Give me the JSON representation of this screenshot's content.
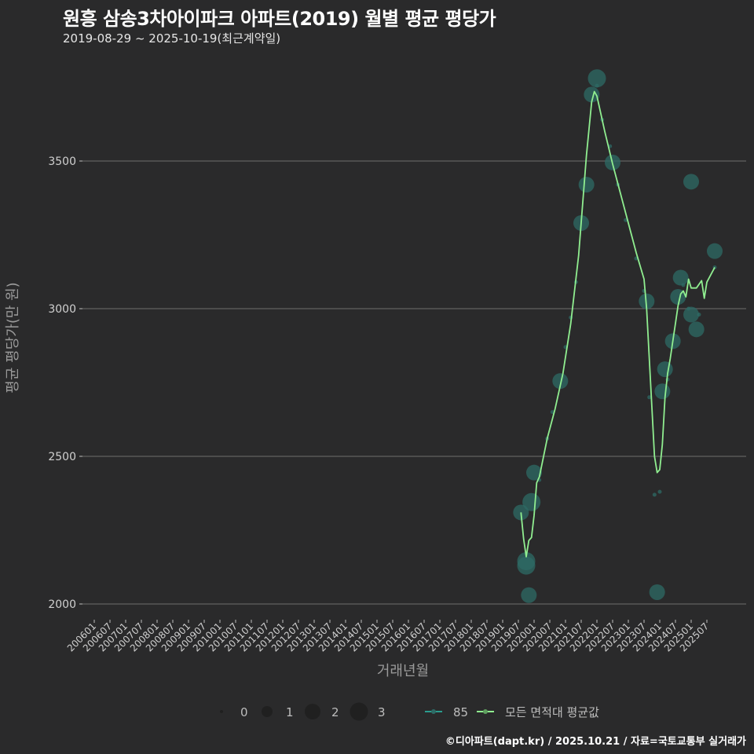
{
  "title": "원흥 삼송3차아이파크 아파트(2019) 월별 평균 평당가",
  "subtitle": "2019-08-29 ~ 2025-10-19(최근계약일)",
  "footer": "©디아파트(dapt.kr) / 2025.10.21 / 자료=국토교통부 실거래가",
  "colors": {
    "background": "#2a2a2b",
    "grid": "#6e6e6e",
    "series_85": "#2a9d8f",
    "bubble_fill": "#2e6b66",
    "average_line": "#90ee90",
    "axis_text": "#d0d0d0",
    "axis_title": "#9a9a9a"
  },
  "chart_data": {
    "type": "line",
    "title": "원흥 삼송3차아이파크 아파트(2019) 월별 평균 평당가",
    "subtitle": "2019-08-29 ~ 2025-10-19(최근계약일)",
    "xlabel": "거래년월",
    "ylabel": "평균 평당가(만 원)",
    "ylim": [
      1930,
      3830
    ],
    "yticks": [
      2000,
      2500,
      3000,
      3500
    ],
    "grid": true,
    "x_tick_labels": [
      "200601",
      "200607",
      "200701",
      "200707",
      "200801",
      "200807",
      "200901",
      "200907",
      "201001",
      "201007",
      "201101",
      "201107",
      "201201",
      "201207",
      "201301",
      "201307",
      "201401",
      "201407",
      "201501",
      "201507",
      "201601",
      "201607",
      "201701",
      "201707",
      "201801",
      "201807",
      "201901",
      "201907",
      "202001",
      "202007",
      "202101",
      "202107",
      "202201",
      "202207",
      "202301",
      "202307",
      "202401",
      "202407",
      "202501",
      "202507"
    ],
    "legend": {
      "position": "bottom",
      "size_title": "",
      "size_entries": [
        {
          "label": "0",
          "r": 2
        },
        {
          "label": "1",
          "r": 7
        },
        {
          "label": "2",
          "r": 10
        },
        {
          "label": "3",
          "r": 11.5
        }
      ],
      "series_entries": [
        {
          "label": "85",
          "color": "#2a9d8f"
        },
        {
          "label": "모든 면적대 평균값",
          "color": "#90ee90"
        }
      ]
    },
    "series": [
      {
        "name": "모든 면적대 평균값",
        "type": "line",
        "points": [
          [
            "2019-08",
            2310
          ],
          [
            "2019-09",
            2220
          ],
          [
            "2019-10",
            2160
          ],
          [
            "2019-11",
            2215
          ],
          [
            "2019-12",
            2225
          ],
          [
            "2020-01",
            2300
          ],
          [
            "2020-02",
            2410
          ],
          [
            "2020-03",
            2430
          ],
          [
            "2020-06",
            2560
          ],
          [
            "2020-09",
            2660
          ],
          [
            "2020-12",
            2780
          ],
          [
            "2021-03",
            2950
          ],
          [
            "2021-06",
            3180
          ],
          [
            "2021-09",
            3520
          ],
          [
            "2021-11",
            3700
          ],
          [
            "2021-12",
            3735
          ],
          [
            "2022-01",
            3720
          ],
          [
            "2022-04",
            3600
          ],
          [
            "2022-07",
            3490
          ],
          [
            "2022-10",
            3390
          ],
          [
            "2023-01",
            3290
          ],
          [
            "2023-04",
            3190
          ],
          [
            "2023-07",
            3100
          ],
          [
            "2023-08",
            3000
          ],
          [
            "2023-09",
            2830
          ],
          [
            "2023-11",
            2500
          ],
          [
            "2023-12",
            2445
          ],
          [
            "2024-01",
            2455
          ],
          [
            "2024-02",
            2540
          ],
          [
            "2024-03",
            2700
          ],
          [
            "2024-04",
            2780
          ],
          [
            "2024-05",
            2830
          ],
          [
            "2024-07",
            2950
          ],
          [
            "2024-08",
            3010
          ],
          [
            "2024-09",
            3050
          ],
          [
            "2024-10",
            3060
          ],
          [
            "2024-11",
            3040
          ],
          [
            "2024-12",
            3100
          ],
          [
            "2025-01",
            3070
          ],
          [
            "2025-03",
            3070
          ],
          [
            "2025-05",
            3095
          ],
          [
            "2025-06",
            3035
          ],
          [
            "2025-07",
            3090
          ],
          [
            "2025-10",
            3140
          ]
        ]
      },
      {
        "name": "85",
        "type": "scatter",
        "points": [
          [
            "2019-08",
            2310,
            2
          ],
          [
            "2019-10",
            2145,
            3
          ],
          [
            "2019-10",
            2130,
            3
          ],
          [
            "2019-11",
            2030,
            2
          ],
          [
            "2019-12",
            2345,
            3
          ],
          [
            "2020-01",
            2445,
            2
          ],
          [
            "2020-03",
            2420,
            0
          ],
          [
            "2020-06",
            2560,
            0
          ],
          [
            "2020-08",
            2650,
            0
          ],
          [
            "2020-11",
            2755,
            2
          ],
          [
            "2021-01",
            2870,
            0
          ],
          [
            "2021-03",
            2970,
            0
          ],
          [
            "2021-05",
            3090,
            0
          ],
          [
            "2021-07",
            3290,
            2
          ],
          [
            "2021-09",
            3420,
            2
          ],
          [
            "2021-11",
            3725,
            2
          ],
          [
            "2022-01",
            3780,
            3
          ],
          [
            "2022-01",
            3755,
            0
          ],
          [
            "2022-03",
            3640,
            0
          ],
          [
            "2022-06",
            3550,
            0
          ],
          [
            "2022-07",
            3495,
            2
          ],
          [
            "2022-09",
            3420,
            0
          ],
          [
            "2022-12",
            3300,
            0
          ],
          [
            "2023-04",
            3170,
            0
          ],
          [
            "2023-07",
            3060,
            0
          ],
          [
            "2023-08",
            3025,
            2
          ],
          [
            "2023-09",
            2700,
            0
          ],
          [
            "2023-11",
            2370,
            0
          ],
          [
            "2023-12",
            2040,
            2
          ],
          [
            "2024-01",
            2380,
            0
          ],
          [
            "2024-02",
            2720,
            2
          ],
          [
            "2024-03",
            2795,
            2
          ],
          [
            "2024-04",
            2760,
            0
          ],
          [
            "2024-06",
            2890,
            2
          ],
          [
            "2024-08",
            3040,
            2
          ],
          [
            "2024-09",
            3105,
            2
          ],
          [
            "2024-10",
            3080,
            0
          ],
          [
            "2024-12",
            3000,
            0
          ],
          [
            "2025-01",
            2980,
            2
          ],
          [
            "2025-01",
            3430,
            2
          ],
          [
            "2025-03",
            2930,
            2
          ],
          [
            "2025-04",
            2980,
            0
          ],
          [
            "2025-10",
            3195,
            2
          ],
          [
            "2025-10",
            3140,
            0
          ]
        ]
      }
    ]
  }
}
